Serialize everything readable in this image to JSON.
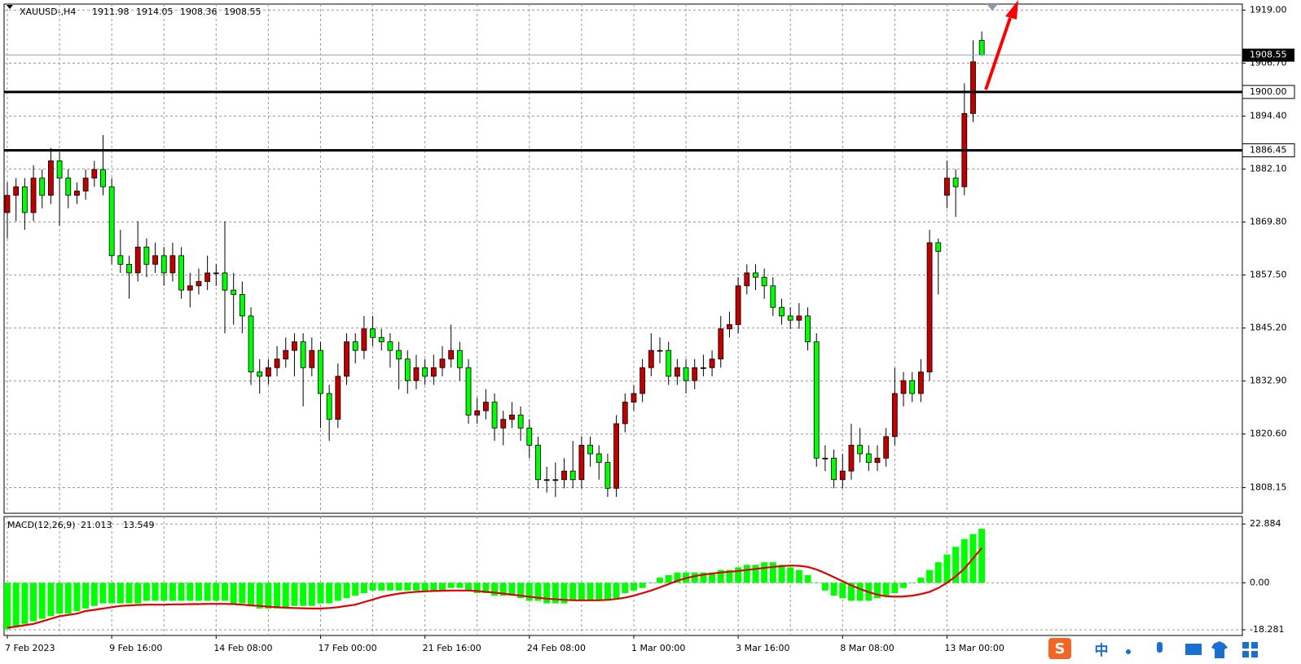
{
  "chart_data": [
    {
      "type": "candlestick",
      "title": "XAUUSD-,H4",
      "categories": [
        "7 Feb 2023",
        null,
        null,
        null,
        null,
        null,
        null,
        null,
        null,
        null,
        null,
        null,
        "9 Feb 16:00",
        null,
        null,
        null,
        null,
        null,
        null,
        null,
        null,
        null,
        null,
        null,
        "14 Feb 08:00",
        null,
        null,
        null,
        null,
        null,
        null,
        null,
        null,
        null,
        null,
        null,
        "17 Feb 00:00",
        null,
        null,
        null,
        null,
        null,
        null,
        null,
        null,
        null,
        null,
        null,
        "21 Feb 16:00",
        null,
        null,
        null,
        null,
        null,
        null,
        null,
        null,
        null,
        null,
        null,
        "24 Feb 08:00",
        null,
        null,
        null,
        null,
        null,
        null,
        null,
        null,
        null,
        null,
        null,
        "1 Mar 00:00",
        null,
        null,
        null,
        null,
        null,
        null,
        null,
        null,
        null,
        null,
        null,
        "3 Mar 16:00",
        null,
        null,
        null,
        null,
        null,
        null,
        null,
        null,
        null,
        null,
        null,
        "8 Mar 08:00",
        null,
        null,
        null,
        null,
        null,
        null,
        null,
        null,
        null,
        null,
        null,
        "13 Mar 00:00",
        null,
        null,
        null,
        null
      ],
      "open": [
        1872,
        1876,
        1878,
        1872,
        1880,
        1876,
        1884,
        1880,
        1876,
        1877,
        1880,
        1882,
        1878,
        1862,
        1860,
        1858,
        1864,
        1860,
        1862,
        1858,
        1862,
        1854,
        1855,
        1856,
        1858,
        1858,
        1854,
        1853,
        1848,
        1835,
        1834,
        1836,
        1838,
        1840,
        1842,
        1836,
        1840,
        1830,
        1824,
        1834,
        1842,
        1840,
        1845,
        1843,
        1842,
        1840,
        1838,
        1833,
        1836,
        1834,
        1836,
        1838,
        1840,
        1836,
        1825,
        1826,
        1828,
        1822,
        1824,
        1825,
        1822,
        1818,
        1810,
        1810,
        1810,
        1812,
        1810,
        1818,
        1816,
        1814,
        1808,
        1823,
        1828,
        1830,
        1836,
        1840,
        1840,
        1834,
        1836,
        1833,
        1836,
        1836,
        1838,
        1845,
        1846,
        1855,
        1858,
        1857,
        1855,
        1850,
        1848,
        1847,
        1848,
        1842,
        1815,
        1815,
        1810,
        1812,
        1818,
        1816,
        1814,
        1815,
        1820,
        1830,
        1833,
        1830,
        1835,
        1865,
        1876,
        1880,
        1878,
        1895,
        1911.98
      ],
      "high": [
        1879,
        1880,
        1880,
        1883,
        1882,
        1887,
        1886,
        1882,
        1879,
        1882,
        1884,
        1890,
        1880,
        1868,
        1862,
        1870,
        1866,
        1865,
        1864,
        1865,
        1864,
        1858,
        1859,
        1862,
        1860,
        1870,
        1858,
        1856,
        1850,
        1838,
        1838,
        1841,
        1843,
        1844,
        1844,
        1843,
        1842,
        1832,
        1837,
        1844,
        1844,
        1848,
        1848,
        1845,
        1844,
        1842,
        1840,
        1839,
        1838,
        1839,
        1841,
        1846,
        1842,
        1838,
        1829,
        1831,
        1830,
        1826,
        1828,
        1827,
        1824,
        1820,
        1813,
        1814,
        1815,
        1819,
        1820,
        1820,
        1818,
        1816,
        1825,
        1830,
        1832,
        1838,
        1844,
        1843,
        1842,
        1838,
        1838,
        1838,
        1839,
        1840,
        1848,
        1849,
        1857,
        1860,
        1860,
        1859,
        1857,
        1852,
        1850,
        1851,
        1850,
        1844,
        1818,
        1817,
        1816,
        1823,
        1822,
        1818,
        1818,
        1822,
        1836,
        1835,
        1835,
        1838,
        1868,
        1866,
        1884,
        1882,
        1902,
        1912,
        1914.05
      ],
      "low": [
        1866,
        1870,
        1868,
        1870,
        1873,
        1874,
        1869,
        1873,
        1874,
        1875,
        1878,
        1876,
        1860,
        1858,
        1852,
        1856,
        1857,
        1858,
        1855,
        1856,
        1852,
        1850,
        1853,
        1854,
        1855,
        1844,
        1846,
        1844,
        1832,
        1830,
        1832,
        1834,
        1836,
        1834,
        1827,
        1834,
        1822,
        1819,
        1822,
        1832,
        1837,
        1838,
        1841,
        1840,
        1836,
        1831,
        1830,
        1831,
        1832,
        1832,
        1834,
        1836,
        1833,
        1823,
        1823,
        1824,
        1819,
        1818,
        1822,
        1819,
        1815,
        1808,
        1807,
        1806,
        1808,
        1808,
        1808,
        1813,
        1810,
        1806,
        1806,
        1821,
        1826,
        1828,
        1834,
        1837,
        1832,
        1832,
        1830,
        1831,
        1834,
        1834,
        1836,
        1843,
        1844,
        1853,
        1854,
        1852,
        1848,
        1846,
        1845,
        1845,
        1840,
        1813,
        1812,
        1808,
        1808,
        1810,
        1814,
        1812,
        1812,
        1813,
        1818,
        1827,
        1828,
        1828,
        1833,
        1853,
        1873,
        1871,
        1876,
        1893,
        1908.36
      ],
      "close": [
        1876,
        1878,
        1872,
        1880,
        1876,
        1884,
        1880,
        1876,
        1877,
        1880,
        1882,
        1878,
        1862,
        1860,
        1858,
        1864,
        1860,
        1862,
        1858,
        1862,
        1854,
        1855,
        1856,
        1858,
        1858,
        1854,
        1853,
        1848,
        1835,
        1834,
        1836,
        1838,
        1840,
        1842,
        1836,
        1840,
        1830,
        1824,
        1834,
        1842,
        1840,
        1845,
        1843,
        1842,
        1840,
        1838,
        1833,
        1836,
        1834,
        1836,
        1838,
        1840,
        1836,
        1825,
        1826,
        1828,
        1822,
        1824,
        1825,
        1822,
        1818,
        1810,
        1810,
        1810,
        1812,
        1810,
        1818,
        1816,
        1814,
        1808,
        1823,
        1828,
        1830,
        1836,
        1840,
        1840,
        1834,
        1836,
        1833,
        1836,
        1836,
        1838,
        1845,
        1846,
        1855,
        1858,
        1857,
        1855,
        1850,
        1848,
        1847,
        1848,
        1842,
        1815,
        1815,
        1810,
        1812,
        1818,
        1816,
        1814,
        1815,
        1820,
        1830,
        1833,
        1830,
        1835,
        1865,
        1863,
        1880,
        1878,
        1895,
        1907,
        1908.55
      ],
      "up_color": "#c00000",
      "down_color": "#00ff00",
      "ylim": [
        1802.2,
        1920.4
      ],
      "yticks": [
        {
          "value": 1919,
          "label": "1919.00"
        },
        {
          "value": 1906.7,
          "label": "1906.70"
        },
        {
          "value": 1894.4,
          "label": "1894.40"
        },
        {
          "value": 1882.1,
          "label": "1882.10"
        },
        {
          "value": 1869.8,
          "label": "1869.80"
        },
        {
          "value": 1857.5,
          "label": "1857.50"
        },
        {
          "value": 1845.2,
          "label": "1845.20"
        },
        {
          "value": 1832.9,
          "label": "1832.90"
        },
        {
          "value": 1820.6,
          "label": "1820.60"
        },
        1808.15
      ],
      "price_lines": [
        {
          "value": 1900,
          "label": "1900.00"
        },
        1886.45
      ],
      "grid": true
    },
    {
      "type": "macd",
      "title": "MACD(12,26,9)",
      "histogram": [
        -18,
        -17,
        -16,
        -15,
        -14,
        -13,
        -12,
        -12,
        -11,
        -10,
        -9,
        -8,
        -8,
        -8,
        -8,
        -8,
        -7,
        -7,
        -7,
        -7,
        -7,
        -7,
        -7,
        -7,
        -7,
        -7,
        -8,
        -8,
        -9,
        -10,
        -10,
        -10,
        -10,
        -9,
        -9,
        -9,
        -8,
        -8,
        -7,
        -6,
        -5,
        -4,
        -3,
        -3,
        -3,
        -3,
        -3,
        -3,
        -3,
        -3,
        -3,
        -2,
        -2,
        -3,
        -4,
        -4,
        -5,
        -5,
        -5,
        -6,
        -7,
        -7,
        -8,
        -8,
        -8,
        -7,
        -7,
        -7,
        -7,
        -7,
        -6,
        -4,
        -3,
        -2,
        0,
        2,
        3,
        4,
        4,
        4,
        4,
        4,
        5,
        5,
        6,
        7,
        7,
        8,
        8,
        7,
        6,
        5,
        3,
        0,
        -3,
        -5,
        -6,
        -7,
        -7,
        -7,
        -6,
        -5,
        -4,
        -2,
        0,
        2,
        5,
        8,
        11,
        14,
        17,
        19,
        21.013
      ],
      "signal": [
        -17.5,
        -17,
        -16.5,
        -16,
        -15,
        -14,
        -13,
        -12.5,
        -12,
        -11,
        -10.5,
        -10,
        -9.5,
        -9,
        -8.8,
        -8.6,
        -8.5,
        -8.5,
        -8.5,
        -8.4,
        -8.4,
        -8.3,
        -8.3,
        -8.2,
        -8.2,
        -8.2,
        -8.3,
        -8.5,
        -8.8,
        -9,
        -9.3,
        -9.5,
        -9.7,
        -9.8,
        -9.9,
        -10,
        -10,
        -9.8,
        -9.5,
        -9,
        -8.5,
        -7.5,
        -6.5,
        -5.5,
        -4.8,
        -4.2,
        -3.8,
        -3.5,
        -3.3,
        -3.2,
        -3.1,
        -3,
        -3,
        -3,
        -3.2,
        -3.5,
        -3.8,
        -4.2,
        -4.6,
        -5,
        -5.4,
        -5.8,
        -6.2,
        -6.4,
        -6.6,
        -6.8,
        -6.8,
        -6.8,
        -6.8,
        -6.6,
        -6.3,
        -5.8,
        -5,
        -4,
        -3,
        -1.8,
        -0.5,
        0.8,
        1.8,
        2.6,
        3.2,
        3.6,
        4,
        4.3,
        4.6,
        5,
        5.4,
        5.8,
        6.2,
        6.5,
        6.7,
        6.6,
        6.2,
        5.2,
        3.8,
        2.2,
        0.6,
        -1,
        -2.4,
        -3.6,
        -4.6,
        -5.2,
        -5.4,
        -5.3,
        -5,
        -4.4,
        -3.5,
        -2,
        0,
        2.5,
        5.5,
        9.5,
        13.549
      ],
      "histogram_color": "#00ff00",
      "signal_color": "#e00000",
      "ylim": [
        -20.5,
        25.8
      ],
      "yticks": [
        22.884,
        {
          "value": 0,
          "label": "0.00"
        },
        -18.281
      ],
      "grid": true
    }
  ],
  "ime_bar": {
    "label": "中"
  }
}
